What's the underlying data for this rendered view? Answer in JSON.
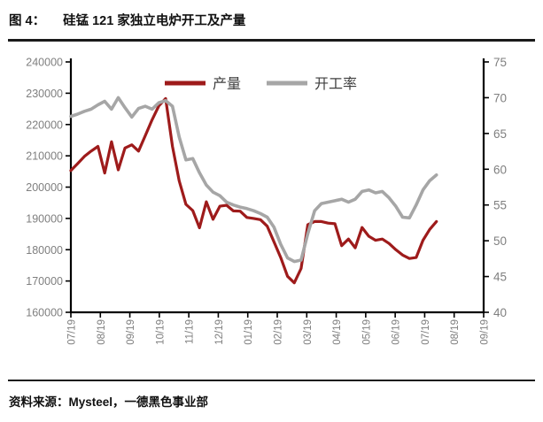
{
  "page": {
    "figure_label": "图 4：",
    "figure_title": "硅锰 121 家独立电炉开工及产量",
    "source_text": "资料来源：Mysteel，一德黑色事业部"
  },
  "colors": {
    "production_red": "#9E1B1B",
    "rate_gray": "#A6A6A6",
    "axis_line": "#000000",
    "axis_text": "#7F7F7F",
    "legend_text": "#3F3F3F",
    "divider": "#1A1A1A"
  },
  "chart_data": {
    "type": "line",
    "title": "硅锰121家独立电炉开工及产量",
    "grid": false,
    "legend_position": "top-center",
    "x_tick_labels": [
      "07/19",
      "08/19",
      "09/19",
      "10/19",
      "11/19",
      "12/19",
      "01/19",
      "02/19",
      "03/19",
      "04/19",
      "05/19",
      "06/19",
      "07/19",
      "08/19",
      "09/19"
    ],
    "x_month_extent": 12.4,
    "left_axis": {
      "min": 160000,
      "max": 240000,
      "step": 10000,
      "tick_labels": [
        "240000",
        "230000",
        "220000",
        "210000",
        "200000",
        "190000",
        "180000",
        "170000",
        "160000"
      ]
    },
    "right_axis": {
      "min": 40,
      "max": 75,
      "step": 5,
      "tick_labels": [
        "75",
        "70",
        "65",
        "60",
        "55",
        "50",
        "45",
        "40"
      ]
    },
    "series": [
      {
        "name": "产量",
        "axis": "left",
        "color": "#9E1B1B",
        "values": [
          205300,
          207500,
          209800,
          211500,
          213000,
          204500,
          214500,
          205500,
          212500,
          213500,
          211500,
          216500,
          221500,
          226000,
          228300,
          213000,
          202000,
          194500,
          192500,
          187000,
          195300,
          189700,
          193900,
          194200,
          192400,
          192300,
          190300,
          190000,
          189600,
          187500,
          182500,
          177500,
          171500,
          169400,
          174000,
          188000,
          189000,
          189000,
          188500,
          188300,
          181300,
          183400,
          180600,
          187100,
          184300,
          183000,
          183400,
          182000,
          180000,
          178300,
          177200,
          177500,
          183000,
          186500,
          189000
        ]
      },
      {
        "name": "开工率",
        "axis": "right",
        "color": "#A6A6A6",
        "values": [
          67.4,
          67.7,
          68.1,
          68.4,
          69.0,
          69.5,
          68.4,
          70.0,
          68.6,
          67.3,
          68.5,
          68.8,
          68.4,
          69.3,
          69.6,
          68.8,
          64.5,
          61.3,
          61.5,
          59.5,
          57.8,
          56.8,
          56.3,
          55.4,
          55.0,
          54.7,
          54.5,
          54.2,
          53.8,
          53.3,
          51.9,
          49.5,
          47.6,
          47.1,
          47.3,
          51.0,
          54.2,
          55.2,
          55.4,
          55.6,
          55.8,
          55.4,
          55.8,
          56.9,
          57.1,
          56.7,
          56.9,
          56.0,
          54.8,
          53.3,
          53.2,
          55.0,
          57.1,
          58.4,
          59.2
        ]
      }
    ]
  }
}
